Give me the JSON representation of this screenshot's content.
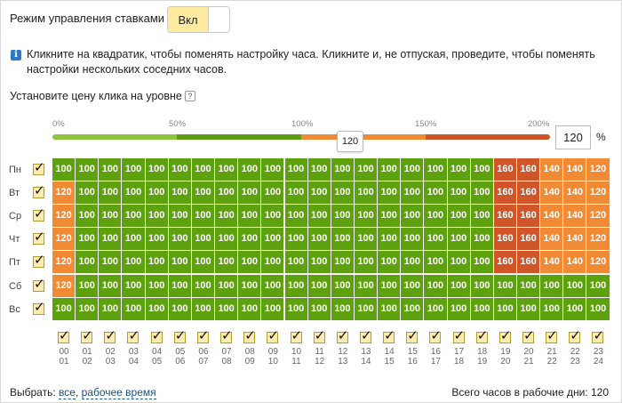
{
  "header": {
    "mode_label": "Режим управления ставками",
    "toggle_label": "Вкл"
  },
  "info": {
    "icon": "info-icon",
    "text": "Кликните на квадратик, чтобы поменять настройку часа. Кликните и, не отпуская, проведите, чтобы поменять настройки нескольких соседних часов."
  },
  "price": {
    "label": "Установите цену клика на уровне",
    "help": "?",
    "scale": [
      "0%",
      "50%",
      "100%",
      "150%",
      "200%"
    ],
    "slider_value": "120",
    "input_value": "120",
    "unit": "%"
  },
  "days": [
    "Пн",
    "Вт",
    "Ср",
    "Чт",
    "Пт",
    "Сб",
    "Вс"
  ],
  "hours": [
    [
      "00",
      "01"
    ],
    [
      "01",
      "02"
    ],
    [
      "02",
      "03"
    ],
    [
      "03",
      "04"
    ],
    [
      "04",
      "05"
    ],
    [
      "05",
      "06"
    ],
    [
      "06",
      "07"
    ],
    [
      "07",
      "08"
    ],
    [
      "08",
      "09"
    ],
    [
      "09",
      "10"
    ],
    [
      "10",
      "11"
    ],
    [
      "11",
      "12"
    ],
    [
      "12",
      "13"
    ],
    [
      "13",
      "14"
    ],
    [
      "14",
      "15"
    ],
    [
      "15",
      "16"
    ],
    [
      "16",
      "17"
    ],
    [
      "17",
      "18"
    ],
    [
      "18",
      "19"
    ],
    [
      "19",
      "20"
    ],
    [
      "20",
      "21"
    ],
    [
      "21",
      "22"
    ],
    [
      "22",
      "23"
    ],
    [
      "23",
      "24"
    ]
  ],
  "grid": [
    [
      100,
      100,
      100,
      100,
      100,
      100,
      100,
      100,
      100,
      100,
      100,
      100,
      100,
      100,
      100,
      100,
      100,
      100,
      100,
      160,
      160,
      140,
      140,
      120
    ],
    [
      120,
      100,
      100,
      100,
      100,
      100,
      100,
      100,
      100,
      100,
      100,
      100,
      100,
      100,
      100,
      100,
      100,
      100,
      100,
      160,
      160,
      140,
      140,
      120
    ],
    [
      120,
      100,
      100,
      100,
      100,
      100,
      100,
      100,
      100,
      100,
      100,
      100,
      100,
      100,
      100,
      100,
      100,
      100,
      100,
      160,
      160,
      140,
      140,
      120
    ],
    [
      120,
      100,
      100,
      100,
      100,
      100,
      100,
      100,
      100,
      100,
      100,
      100,
      100,
      100,
      100,
      100,
      100,
      100,
      100,
      160,
      160,
      140,
      140,
      120
    ],
    [
      120,
      100,
      100,
      100,
      100,
      100,
      100,
      100,
      100,
      100,
      100,
      100,
      100,
      100,
      100,
      100,
      100,
      100,
      100,
      160,
      160,
      140,
      140,
      120
    ],
    [
      120,
      100,
      100,
      100,
      100,
      100,
      100,
      100,
      100,
      100,
      100,
      100,
      100,
      100,
      100,
      100,
      100,
      100,
      100,
      100,
      100,
      100,
      100,
      100
    ],
    [
      100,
      100,
      100,
      100,
      100,
      100,
      100,
      100,
      100,
      100,
      100,
      100,
      100,
      100,
      100,
      100,
      100,
      100,
      100,
      100,
      100,
      100,
      100,
      100
    ]
  ],
  "colors": {
    "v100": "#5ea10e",
    "v120": "#f08a35",
    "v140": "#f08a35",
    "v160": "#d0562a",
    "bar": [
      "#8ec53d",
      "#5c9c12",
      "#f08a35",
      "#d0562a"
    ]
  },
  "footer": {
    "select_label": "Выбрать:",
    "link_all": "все",
    "link_work": "рабочее время",
    "total_label": "Всего часов в рабочие дни:",
    "total_value": "120"
  }
}
